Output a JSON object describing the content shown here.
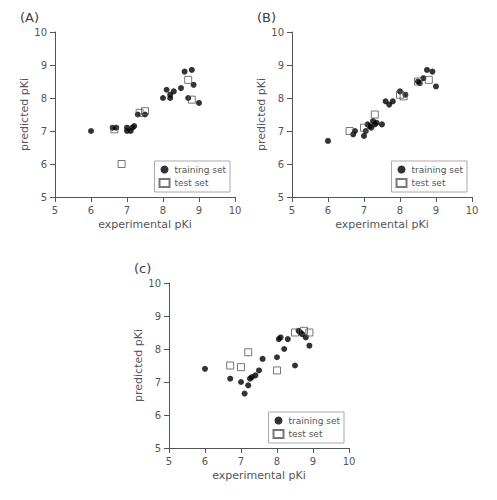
{
  "chart_data": [
    {
      "type": "scatter",
      "title": "(A)",
      "xlabel": "experimental pKi",
      "ylabel": "predicted pKi",
      "xlim": [
        5,
        10
      ],
      "ylim": [
        5,
        10
      ],
      "xticks": [
        5,
        6,
        7,
        8,
        9,
        10
      ],
      "yticks": [
        5,
        6,
        7,
        8,
        9,
        10
      ],
      "grid": false,
      "legend": "lower right",
      "series": [
        {
          "name": "training set",
          "color": "#000000",
          "marker": "circle",
          "x": [
            6.0,
            6.6,
            6.7,
            7.0,
            7.0,
            7.1,
            7.15,
            7.2,
            7.3,
            7.5,
            8.0,
            8.1,
            8.2,
            8.2,
            8.3,
            8.5,
            8.6,
            8.7,
            8.8,
            8.85,
            9.0
          ],
          "values": [
            7.0,
            7.1,
            7.1,
            7.0,
            7.1,
            7.0,
            7.1,
            7.15,
            7.5,
            7.5,
            8.0,
            8.25,
            8.0,
            8.1,
            8.2,
            8.3,
            8.8,
            8.0,
            8.85,
            8.4,
            7.85
          ]
        },
        {
          "name": "test set",
          "color": "#555555",
          "marker": "open_square",
          "x": [
            6.65,
            7.35,
            7.5,
            8.7,
            8.8,
            6.85
          ],
          "values": [
            7.05,
            7.55,
            7.6,
            8.55,
            7.95,
            6.0
          ]
        }
      ]
    },
    {
      "type": "scatter",
      "title": "(B)",
      "xlabel": "experimental pKi",
      "ylabel": "predicted pKi",
      "xlim": [
        5,
        10
      ],
      "ylim": [
        5,
        10
      ],
      "xticks": [
        5,
        6,
        7,
        8,
        9,
        10
      ],
      "yticks": [
        5,
        6,
        7,
        8,
        9,
        10
      ],
      "grid": false,
      "legend": "lower right",
      "series": [
        {
          "name": "training set",
          "color": "#000000",
          "marker": "circle",
          "x": [
            6.0,
            6.7,
            6.75,
            7.0,
            7.05,
            7.1,
            7.15,
            7.2,
            7.25,
            7.3,
            7.35,
            7.5,
            7.6,
            7.7,
            7.8,
            8.0,
            8.15,
            8.5,
            8.55,
            8.65,
            8.75,
            8.9,
            9.0
          ],
          "values": [
            6.7,
            6.9,
            7.0,
            6.85,
            7.0,
            7.2,
            7.15,
            7.1,
            7.3,
            7.2,
            7.25,
            7.2,
            7.9,
            7.8,
            7.9,
            8.2,
            8.1,
            8.5,
            8.45,
            8.6,
            8.85,
            8.8,
            8.35
          ]
        },
        {
          "name": "test set",
          "color": "#555555",
          "marker": "open_square",
          "x": [
            6.6,
            7.0,
            7.3,
            8.0,
            8.1,
            8.5,
            8.8
          ],
          "values": [
            7.0,
            7.1,
            7.5,
            8.1,
            8.05,
            8.5,
            8.55
          ]
        }
      ]
    },
    {
      "type": "scatter",
      "title": "(c)",
      "xlabel": "experimental pKi",
      "ylabel": "predicted pKi",
      "xlim": [
        5,
        10
      ],
      "ylim": [
        5,
        10
      ],
      "xticks": [
        5,
        6,
        7,
        8,
        9,
        10
      ],
      "yticks": [
        5,
        6,
        7,
        8,
        9,
        10
      ],
      "grid": false,
      "legend": "lower right",
      "series": [
        {
          "name": "training set",
          "color": "#000000",
          "marker": "circle",
          "x": [
            6.0,
            6.7,
            7.0,
            7.1,
            7.2,
            7.25,
            7.3,
            7.4,
            7.5,
            7.6,
            8.0,
            8.05,
            8.1,
            8.2,
            8.3,
            8.5,
            8.6,
            8.65,
            8.7,
            8.8,
            8.9
          ],
          "values": [
            7.4,
            7.1,
            7.0,
            6.65,
            6.9,
            7.1,
            7.15,
            7.2,
            7.35,
            7.7,
            7.75,
            8.3,
            8.35,
            8.0,
            8.3,
            7.5,
            8.55,
            8.5,
            8.45,
            8.35,
            8.1
          ]
        },
        {
          "name": "test set",
          "color": "#555555",
          "marker": "open_square",
          "x": [
            6.7,
            7.0,
            7.2,
            8.0,
            8.5,
            8.75,
            8.9
          ],
          "values": [
            7.5,
            7.45,
            7.9,
            7.35,
            8.5,
            8.55,
            8.5
          ]
        }
      ]
    }
  ]
}
